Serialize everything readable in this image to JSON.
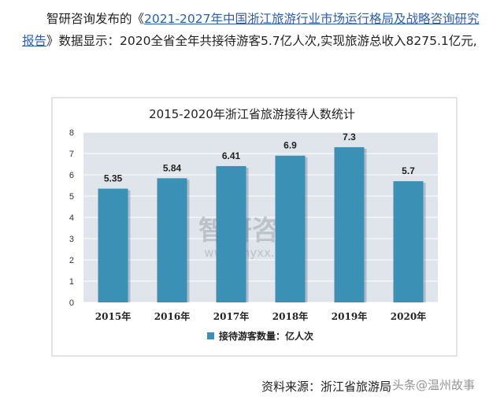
{
  "article": {
    "prefix": "智研咨询发布的《",
    "link_text": "2021-2027年中国浙江旅游行业市场运行格局及战略咨询研究报告",
    "suffix": "》数据显示：2020全省全年共接待游客5.7亿人次,实现旅游总收入8275.1亿元,"
  },
  "chart_data": {
    "type": "bar",
    "title": "2015-2020年浙江省旅游接待人数统计",
    "categories": [
      "2015年",
      "2016年",
      "2017年",
      "2018年",
      "2019年",
      "2020年"
    ],
    "series": [
      {
        "name": "接待游客数量：亿人次",
        "values": [
          5.35,
          5.84,
          6.41,
          6.9,
          7.3,
          5.7
        ]
      }
    ],
    "data_labels": [
      "5.35",
      "5.84",
      "6.41",
      "6.9",
      "7.3",
      "5.7"
    ],
    "ylim": [
      0,
      8
    ],
    "yticks": [
      0,
      1,
      2,
      3,
      4,
      5,
      6,
      7,
      8
    ],
    "grid": true,
    "legend_position": "bottom",
    "bar_color": "#3a90b5",
    "plot_background": "#dfe5ea"
  },
  "watermark": {
    "brand": "智研咨询",
    "url": "www.chyxx.com"
  },
  "source": {
    "text": "资料来源：浙江省旅游局"
  },
  "corner_mark": {
    "text": "头条@温州故事"
  }
}
